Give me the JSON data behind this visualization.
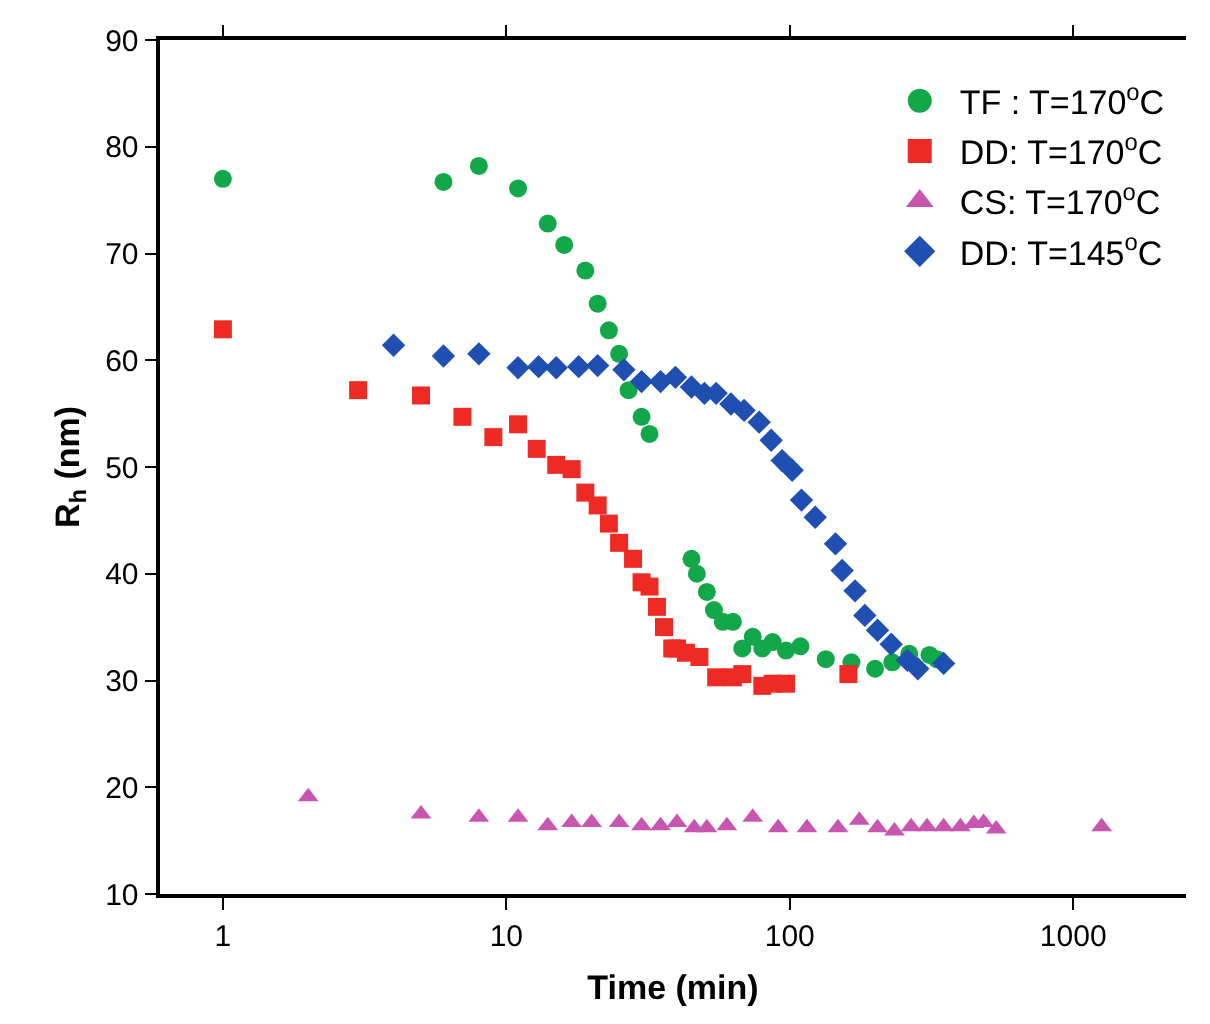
{
  "chart_data": {
    "type": "scatter",
    "xlabel": "Time (min)",
    "ylabel": "R$_{h}$ (nm)",
    "log": "x",
    "xlim": [
      0.6,
      2500
    ],
    "xticks": [
      1,
      10,
      100,
      1000
    ],
    "ylim": [
      10,
      90
    ],
    "yticks": [
      10,
      20,
      30,
      40,
      50,
      60,
      70,
      80,
      90
    ],
    "legend": "top right",
    "series": [
      {
        "name": "TF : T=170$^{o}$C",
        "color": "#12a84a",
        "marker": "circle",
        "x": [
          1,
          6,
          8,
          11,
          14,
          16,
          19,
          21,
          23,
          25,
          27,
          30,
          32,
          45,
          47,
          51,
          54,
          58,
          63,
          68,
          74,
          80,
          87,
          97,
          109,
          134,
          165,
          200,
          230,
          264,
          311,
          330
        ],
        "values": [
          77.0,
          76.7,
          78.2,
          76.1,
          72.8,
          70.8,
          68.4,
          65.3,
          62.8,
          60.6,
          57.2,
          54.7,
          53.1,
          41.4,
          40.0,
          38.3,
          36.6,
          35.5,
          35.5,
          33.0,
          34.1,
          33.0,
          33.6,
          32.8,
          33.2,
          32.0,
          31.7,
          31.1,
          31.7,
          32.5,
          32.4,
          32.0
        ]
      },
      {
        "name": "DD: T=170$^{o}$C",
        "color": "#ee2a24",
        "marker": "square",
        "x": [
          1,
          3,
          5,
          7,
          9,
          11,
          12.8,
          15,
          17,
          19,
          21,
          23,
          25,
          28,
          30,
          32,
          34,
          36,
          38.5,
          40,
          43,
          48,
          55,
          63,
          68,
          80,
          87,
          97,
          161
        ],
        "values": [
          62.9,
          57.2,
          56.7,
          54.7,
          52.8,
          54.0,
          51.7,
          50.2,
          49.8,
          47.6,
          46.4,
          44.7,
          42.9,
          41.4,
          39.2,
          38.8,
          36.9,
          35.0,
          33.0,
          33.0,
          32.6,
          32.2,
          30.3,
          30.3,
          30.6,
          29.5,
          29.7,
          29.7,
          30.6
        ]
      },
      {
        "name": "CS: T=170$^{o}$C",
        "color": "#c855b0",
        "marker": "triangle",
        "x": [
          2,
          5,
          8,
          11,
          14,
          17,
          20,
          25,
          30,
          35,
          40,
          46,
          51,
          60,
          74,
          91,
          115,
          148,
          176,
          204,
          234,
          268,
          305,
          349,
          400,
          446,
          483,
          535,
          1260
        ],
        "values": [
          19.1,
          17.5,
          17.2,
          17.2,
          16.4,
          16.7,
          16.7,
          16.7,
          16.4,
          16.4,
          16.7,
          16.2,
          16.2,
          16.4,
          17.2,
          16.2,
          16.2,
          16.2,
          16.9,
          16.2,
          15.9,
          16.3,
          16.3,
          16.3,
          16.3,
          16.6,
          16.7,
          16.1,
          16.3
        ]
      },
      {
        "name": "DD: T=145$^{o}$C",
        "color": "#1f4fb0",
        "marker": "diamond",
        "x": [
          4,
          6,
          8,
          11,
          13,
          15,
          18,
          21,
          26,
          30,
          35,
          39.5,
          45,
          50,
          55,
          62,
          69,
          78,
          86,
          94,
          102,
          110,
          123,
          145,
          153,
          170,
          184,
          204,
          228,
          260,
          283,
          349
        ],
        "values": [
          61.4,
          60.4,
          60.6,
          59.3,
          59.4,
          59.3,
          59.4,
          59.5,
          59.1,
          58.0,
          58.0,
          58.4,
          57.5,
          56.9,
          56.9,
          55.9,
          55.3,
          54.2,
          52.5,
          50.6,
          49.7,
          46.9,
          45.3,
          42.8,
          40.3,
          38.4,
          36.1,
          34.7,
          33.4,
          31.9,
          31.1,
          31.6
        ]
      }
    ]
  }
}
